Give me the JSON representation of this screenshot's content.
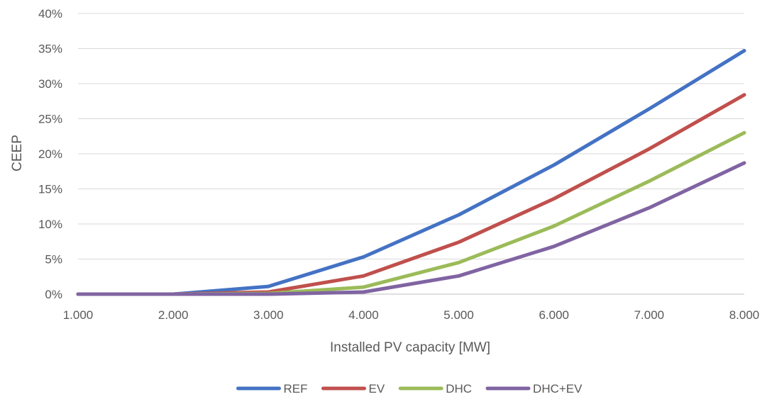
{
  "chart_data": {
    "type": "line",
    "xlabel": "Installed PV capacity [MW]",
    "ylabel": "CEEP",
    "categories": [
      "1.000",
      "2.000",
      "3.000",
      "4.000",
      "5.000",
      "6.000",
      "7.000",
      "8.000"
    ],
    "x": [
      1000,
      2000,
      3000,
      4000,
      5000,
      6000,
      7000,
      8000
    ],
    "y_ticks": [
      "0%",
      "5%",
      "10%",
      "15%",
      "20%",
      "25%",
      "30%",
      "35%",
      "40%"
    ],
    "ylim": [
      0,
      40
    ],
    "y_unit": "%",
    "grid": true,
    "legend_position": "bottom",
    "series": [
      {
        "name": "REF",
        "color": "#4472c4",
        "values": [
          0,
          0,
          1.1,
          5.3,
          11.3,
          18.4,
          26.4,
          34.7
        ]
      },
      {
        "name": "EV",
        "color": "#c0504d",
        "values": [
          0,
          0,
          0.3,
          2.6,
          7.4,
          13.6,
          20.7,
          28.4
        ]
      },
      {
        "name": "DHC",
        "color": "#9bbb59",
        "values": [
          0,
          0,
          0.1,
          1.0,
          4.5,
          9.7,
          16.1,
          23.0
        ]
      },
      {
        "name": "DHC+EV",
        "color": "#8064a2",
        "values": [
          0,
          0,
          0.0,
          0.3,
          2.6,
          6.8,
          12.3,
          18.7
        ]
      }
    ]
  }
}
